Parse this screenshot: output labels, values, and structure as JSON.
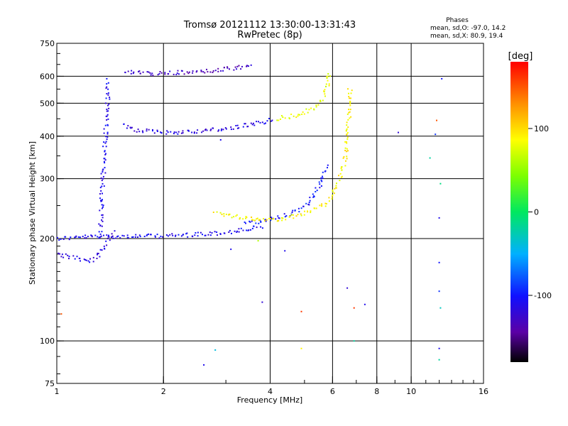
{
  "chart_data": {
    "type": "scatter",
    "title": "Tromsø 20121112 13:30:00-13:31:43",
    "subtitle": "RwPretec (8p)",
    "xlabel": "Frequency [MHz]",
    "ylabel": "Stationary phase Virtual Height [km]",
    "x_scale": "log",
    "y_scale": "log",
    "xlim": [
      1,
      16
    ],
    "ylim": [
      75,
      750
    ],
    "x_ticks": [
      1,
      2,
      4,
      6,
      8,
      10,
      16
    ],
    "y_ticks": [
      75,
      100,
      200,
      300,
      400,
      500,
      600,
      750
    ],
    "grid_x": [
      2,
      4,
      6,
      8,
      10
    ],
    "grid_y": [
      100,
      200,
      300,
      400,
      500,
      600
    ],
    "phases_box": {
      "title": "Phases",
      "line_o": "mean, sd,O: -97.0, 14.2",
      "line_x": "mean, sd,X:  80.9, 19.4"
    },
    "colorbar": {
      "label": "[deg]",
      "range": [
        -180,
        180
      ],
      "ticks": [
        100,
        0,
        -100
      ]
    },
    "traces": [
      {
        "x": [
          1.0,
          1.1,
          1.2,
          1.35,
          1.5,
          1.8,
          2.2,
          2.6,
          3.0,
          3.4,
          3.8
        ],
        "y": [
          200,
          201,
          202,
          203,
          203,
          203,
          204,
          206,
          208,
          212,
          217
        ],
        "phase": -110
      },
      {
        "x": [
          1.55,
          1.7,
          2.0,
          2.3,
          2.6,
          3.0,
          3.4,
          3.8,
          4.1
        ],
        "y": [
          430,
          415,
          410,
          412,
          415,
          420,
          430,
          440,
          450
        ],
        "phase": -115
      },
      {
        "x": [
          1.55,
          1.8,
          2.1,
          2.5,
          3.0,
          3.4,
          3.6
        ],
        "y": [
          620,
          610,
          612,
          618,
          628,
          640,
          650
        ],
        "phase": -130
      },
      {
        "x": [
          3.4,
          3.9,
          4.3,
          4.8,
          5.2,
          5.5,
          5.8
        ],
        "y": [
          222,
          226,
          232,
          243,
          258,
          285,
          330
        ],
        "phase": -100
      },
      {
        "x": [
          2.8,
          3.2,
          3.7,
          4.2,
          4.7,
          5.2,
          5.8,
          6.2,
          6.5,
          6.65,
          6.72
        ],
        "y": [
          238,
          232,
          228,
          228,
          232,
          240,
          255,
          285,
          340,
          430,
          560
        ],
        "phase": 90
      },
      {
        "x": [
          4.2,
          4.8,
          5.3,
          5.6,
          5.8,
          5.9
        ],
        "y": [
          450,
          462,
          480,
          510,
          560,
          620
        ],
        "phase": 80
      },
      {
        "x": [
          1.0,
          1.12,
          1.25,
          1.35,
          1.45
        ],
        "y": [
          180,
          175,
          172,
          185,
          210
        ],
        "phase": -115
      },
      {
        "x": [
          1.32,
          1.34,
          1.36,
          1.38,
          1.4
        ],
        "y": [
          200,
          260,
          340,
          430,
          590
        ],
        "phase": -110
      }
    ],
    "scatter_points": [
      {
        "x": 12.2,
        "y": 590,
        "phase": -100
      },
      {
        "x": 11.8,
        "y": 445,
        "phase": 150
      },
      {
        "x": 11.7,
        "y": 405,
        "phase": -90
      },
      {
        "x": 11.3,
        "y": 345,
        "phase": -20
      },
      {
        "x": 12.1,
        "y": 290,
        "phase": -10
      },
      {
        "x": 12.0,
        "y": 230,
        "phase": -110
      },
      {
        "x": 12.0,
        "y": 170,
        "phase": -100
      },
      {
        "x": 12.0,
        "y": 140,
        "phase": -90
      },
      {
        "x": 12.1,
        "y": 125,
        "phase": -30
      },
      {
        "x": 12.0,
        "y": 95,
        "phase": -110
      },
      {
        "x": 12.0,
        "y": 88,
        "phase": -20
      },
      {
        "x": 9.2,
        "y": 410,
        "phase": -120
      },
      {
        "x": 6.9,
        "y": 125,
        "phase": 160
      },
      {
        "x": 6.6,
        "y": 143,
        "phase": -120
      },
      {
        "x": 7.4,
        "y": 128,
        "phase": -110
      },
      {
        "x": 4.9,
        "y": 122,
        "phase": 160
      },
      {
        "x": 3.8,
        "y": 130,
        "phase": -120
      },
      {
        "x": 4.4,
        "y": 184,
        "phase": -110
      },
      {
        "x": 3.1,
        "y": 186,
        "phase": -110
      },
      {
        "x": 3.7,
        "y": 197,
        "phase": 60
      },
      {
        "x": 2.8,
        "y": 94,
        "phase": -40
      },
      {
        "x": 2.6,
        "y": 85,
        "phase": -110
      },
      {
        "x": 4.9,
        "y": 95,
        "phase": 90
      },
      {
        "x": 6.9,
        "y": 100,
        "phase": -20
      },
      {
        "x": 1.03,
        "y": 120,
        "phase": 150
      },
      {
        "x": 2.9,
        "y": 390,
        "phase": -110
      }
    ]
  }
}
